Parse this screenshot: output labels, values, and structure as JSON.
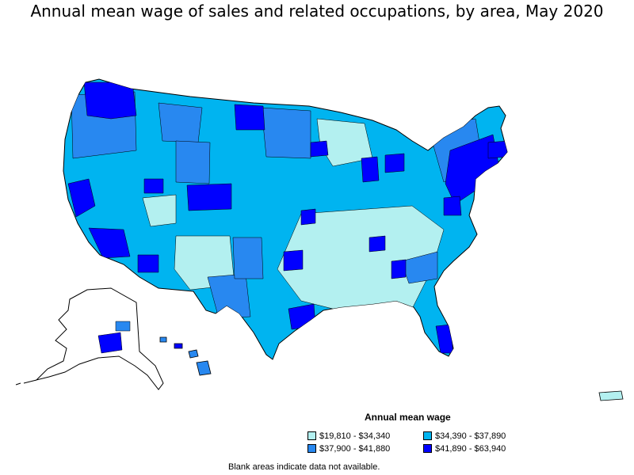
{
  "title": "Annual mean wage of sales and related occupations, by area, May 2020",
  "legend": {
    "title": "Annual mean wage",
    "items": [
      {
        "label": "$19,810 - $34,340",
        "color": "#b3f0f0"
      },
      {
        "label": "$34,390 - $37,890",
        "color": "#00b4f0"
      },
      {
        "label": "$37,900 - $41,880",
        "color": "#2888f0"
      },
      {
        "label": "$41,890 - $63,940",
        "color": "#0000ff"
      }
    ]
  },
  "footnote": "Blank areas indicate data not available.",
  "colors": {
    "tier1": "#b3f0f0",
    "tier2": "#00b4f0",
    "tier3": "#2888f0",
    "tier4": "#0000ff",
    "border": "#000000",
    "background": "#ffffff"
  }
}
